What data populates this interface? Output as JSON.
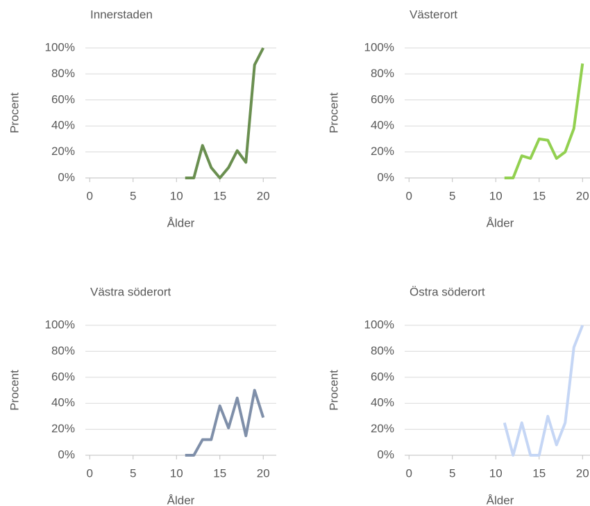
{
  "chart_data": [
    {
      "type": "line",
      "title": "Innerstaden",
      "xlabel": "Ålder",
      "ylabel": "Procent",
      "x": [
        11,
        12,
        13,
        14,
        15,
        16,
        17,
        18,
        19,
        20
      ],
      "series": [
        {
          "color": "#6a8f50",
          "values": [
            0,
            0,
            25,
            8,
            0,
            8,
            21,
            12,
            87,
            100
          ]
        }
      ],
      "xlim": [
        -0.5,
        21.5
      ],
      "xticks": [
        0,
        5,
        10,
        15,
        20
      ],
      "ylim": [
        0,
        100
      ],
      "yticks": [
        {
          "value": 0,
          "label": "0%"
        },
        {
          "value": 20,
          "label": "20%"
        },
        {
          "value": 40,
          "label": "40%"
        },
        {
          "value": 60,
          "label": "60%"
        },
        {
          "value": 80,
          "label": "80%"
        },
        {
          "value": 100,
          "label": "100%"
        }
      ],
      "grid": true
    },
    {
      "type": "line",
      "title": "Västerort",
      "xlabel": "Ålder",
      "ylabel": "Procent",
      "x": [
        11,
        12,
        13,
        14,
        15,
        16,
        17,
        18,
        19,
        20
      ],
      "series": [
        {
          "color": "#92d050",
          "values": [
            0,
            0,
            17,
            15,
            30,
            29,
            15,
            20,
            38,
            88
          ]
        }
      ],
      "xlim": [
        -0.5,
        21.5
      ],
      "xticks": [
        0,
        5,
        10,
        15,
        20
      ],
      "ylim": [
        0,
        100
      ],
      "yticks": [
        {
          "value": 0,
          "label": "0%"
        },
        {
          "value": 20,
          "label": "20%"
        },
        {
          "value": 40,
          "label": "40%"
        },
        {
          "value": 60,
          "label": "60%"
        },
        {
          "value": 80,
          "label": "80%"
        },
        {
          "value": 100,
          "label": "100%"
        }
      ],
      "grid": true
    },
    {
      "type": "line",
      "title": "Västra söderort",
      "xlabel": "Ålder",
      "ylabel": "Procent",
      "x": [
        11,
        12,
        13,
        14,
        15,
        16,
        17,
        18,
        19,
        20
      ],
      "series": [
        {
          "color": "#7f8fa9",
          "values": [
            0,
            0,
            12,
            12,
            38,
            21,
            44,
            15,
            50,
            29
          ]
        }
      ],
      "xlim": [
        -0.5,
        21.5
      ],
      "xticks": [
        0,
        5,
        10,
        15,
        20
      ],
      "ylim": [
        0,
        100
      ],
      "yticks": [
        {
          "value": 0,
          "label": "0%"
        },
        {
          "value": 20,
          "label": "20%"
        },
        {
          "value": 40,
          "label": "40%"
        },
        {
          "value": 60,
          "label": "60%"
        },
        {
          "value": 80,
          "label": "80%"
        },
        {
          "value": 100,
          "label": "100%"
        }
      ],
      "grid": true
    },
    {
      "type": "line",
      "title": "Östra söderort",
      "xlabel": "Ålder",
      "ylabel": "Procent",
      "x": [
        11,
        12,
        13,
        14,
        15,
        16,
        17,
        18,
        19,
        20
      ],
      "series": [
        {
          "color": "#c5d6f5",
          "values": [
            25,
            0,
            25,
            0,
            0,
            30,
            8,
            25,
            83,
            100
          ]
        }
      ],
      "xlim": [
        -0.5,
        21.5
      ],
      "xticks": [
        0,
        5,
        10,
        15,
        20
      ],
      "ylim": [
        0,
        100
      ],
      "yticks": [
        {
          "value": 0,
          "label": "0%"
        },
        {
          "value": 20,
          "label": "20%"
        },
        {
          "value": 40,
          "label": "40%"
        },
        {
          "value": 60,
          "label": "60%"
        },
        {
          "value": 80,
          "label": "80%"
        },
        {
          "value": 100,
          "label": "100%"
        }
      ],
      "grid": true
    }
  ]
}
